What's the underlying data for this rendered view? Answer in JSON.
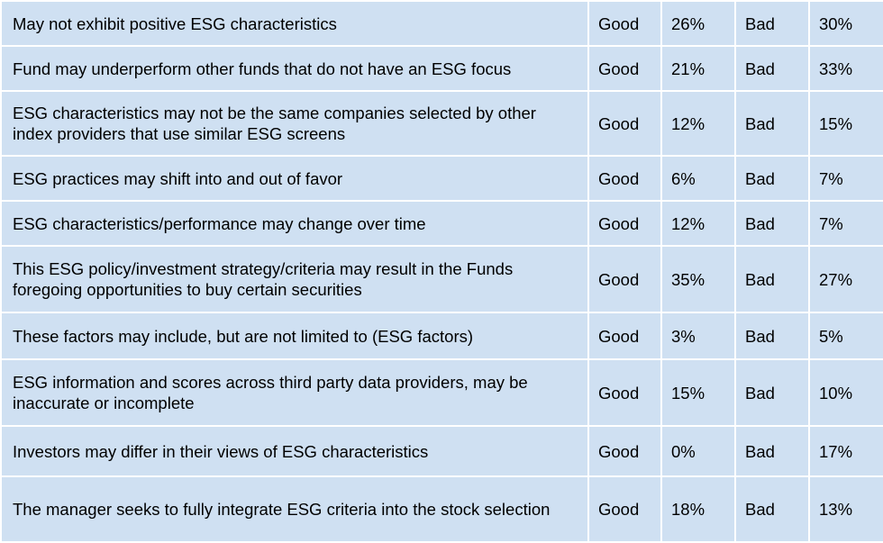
{
  "rows": [
    {
      "risk": "May not exhibit positive ESG characteristics",
      "good_label": "Good",
      "good": "26%",
      "bad_label": "Bad",
      "bad": "30%"
    },
    {
      "risk": "Fund may underperform other funds that do not have an ESG focus",
      "good_label": "Good",
      "good": "21%",
      "bad_label": "Bad",
      "bad": "33%"
    },
    {
      "risk": "ESG characteristics may not be the same companies selected by other index providers that use similar ESG screens",
      "good_label": "Good",
      "good": "12%",
      "bad_label": "Bad",
      "bad": "15%"
    },
    {
      "risk": "ESG practices may shift into and out of favor",
      "good_label": "Good",
      "good": "6%",
      "bad_label": "Bad",
      "bad": "7%"
    },
    {
      "risk": "ESG characteristics/performance may change over time",
      "good_label": "Good",
      "good": "12%",
      "bad_label": "Bad",
      "bad": "7%"
    },
    {
      "risk": "This ESG policy/investment strategy/criteria may result in the Funds foregoing opportunities to buy certain securities",
      "good_label": "Good",
      "good": "35%",
      "bad_label": "Bad",
      "bad": "27%"
    },
    {
      "risk": "These factors may include, but are not limited to (ESG factors)",
      "good_label": "Good",
      "good": "3%",
      "bad_label": "Bad",
      "bad": "5%"
    },
    {
      "risk": "ESG information and scores across third party data providers, may be inaccurate or incomplete",
      "good_label": "Good",
      "good": "15%",
      "bad_label": "Bad",
      "bad": "10%"
    },
    {
      "risk": "Investors may differ in their views of ESG characteristics",
      "good_label": "Good",
      "good": "0%",
      "bad_label": "Bad",
      "bad": "17%"
    },
    {
      "risk": "The manager seeks to fully integrate ESG criteria into the stock selection",
      "good_label": "Good",
      "good": "18%",
      "bad_label": "Bad",
      "bad": "13%"
    }
  ],
  "colors": {
    "cell": "#cfe0f2",
    "border": "#ffffff"
  }
}
